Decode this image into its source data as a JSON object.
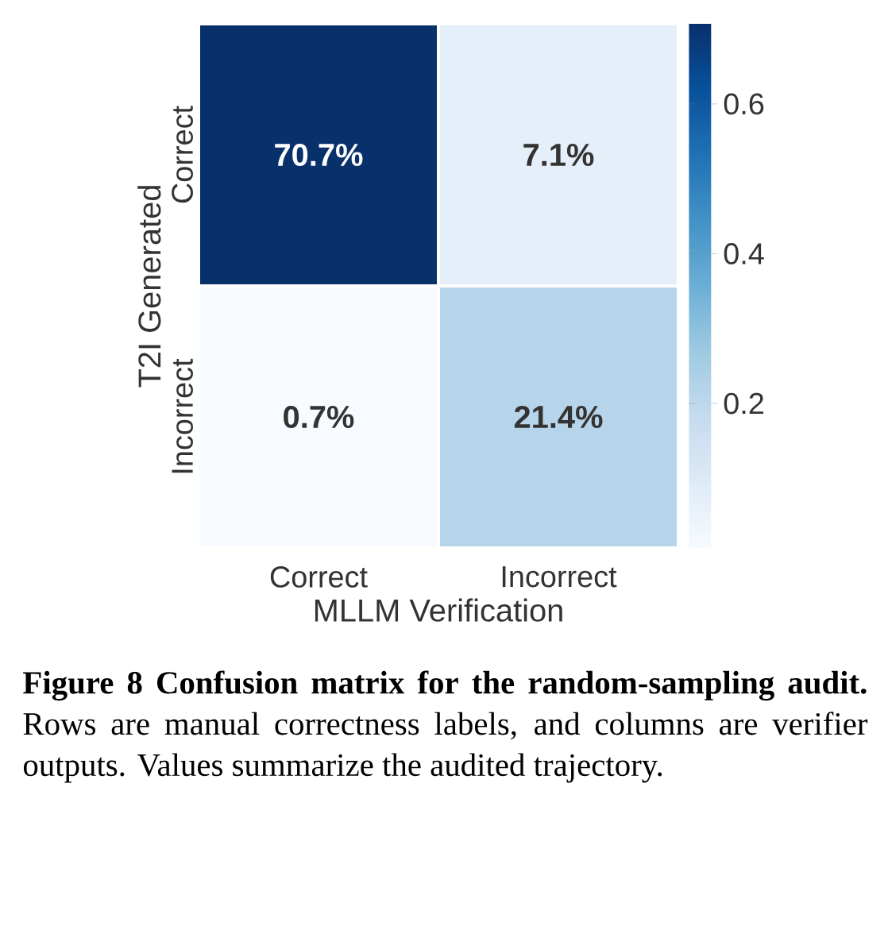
{
  "chart_data": {
    "type": "heatmap",
    "xlabel": "MLLM Verification",
    "ylabel": "T2I Generated",
    "categories": [
      "Correct",
      "Incorrect"
    ],
    "y_categories": [
      "Correct",
      "Incorrect"
    ],
    "cells": [
      [
        0.707,
        0.071
      ],
      [
        0.007,
        0.214
      ]
    ],
    "cell_labels": [
      [
        "70.7%",
        "7.1%"
      ],
      [
        "0.7%",
        "21.4%"
      ]
    ],
    "clim": [
      0.007,
      0.707
    ],
    "cticks": [
      0.2,
      0.4,
      0.6
    ],
    "annotations": [
      "**Figure 8 Confusion matrix for the random-sampling audit.** Rows are manual correctness labels, and columns are verifier outputs. Values summarize the audited trajectory."
    ]
  }
}
